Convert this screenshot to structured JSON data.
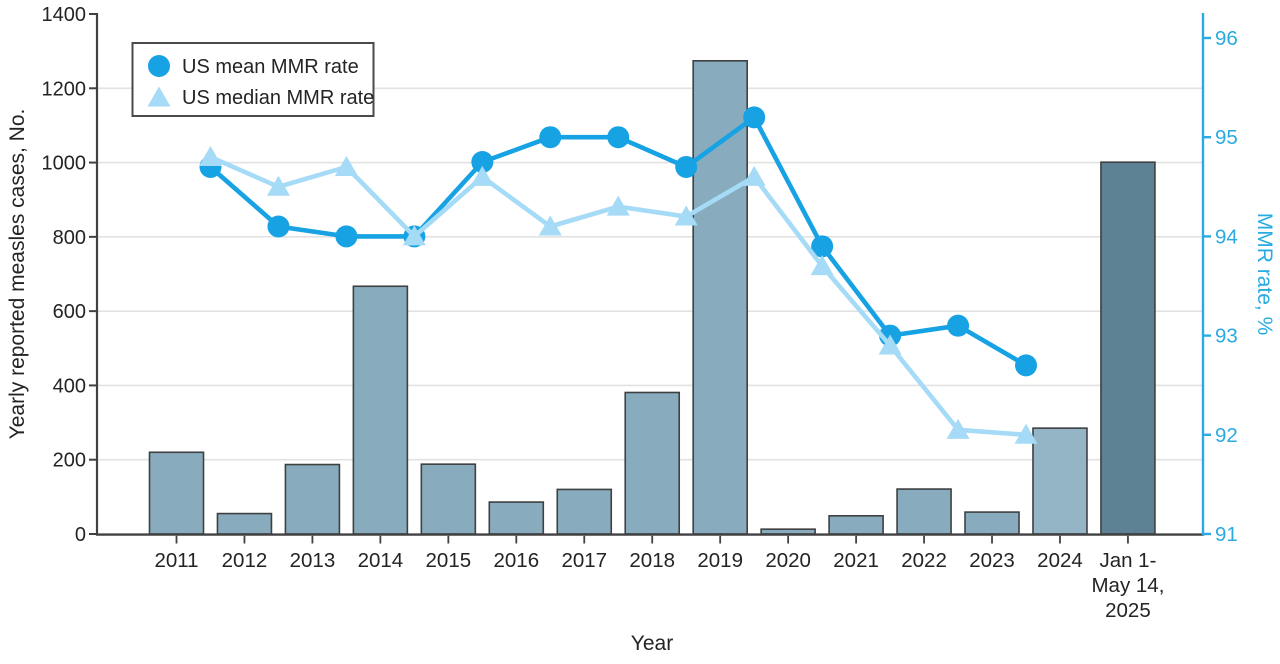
{
  "chart_data": {
    "type": "combo_bar_line",
    "title": "",
    "xlabel": "Year",
    "ylabel_left": "Yearly reported measles cases, No.",
    "ylabel_right": "MMR rate, %",
    "category_labels": [
      [
        "2011"
      ],
      [
        "2012"
      ],
      [
        "2013"
      ],
      [
        "2014"
      ],
      [
        "2015"
      ],
      [
        "2016"
      ],
      [
        "2017"
      ],
      [
        "2018"
      ],
      [
        "2019"
      ],
      [
        "2020"
      ],
      [
        "2021"
      ],
      [
        "2022"
      ],
      [
        "2023"
      ],
      [
        "2024"
      ],
      [
        "Jan 1-",
        "May 14,",
        "2025"
      ]
    ],
    "bars": {
      "values": [
        220,
        55,
        187,
        667,
        188,
        86,
        120,
        381,
        1274,
        13,
        49,
        121,
        59,
        285,
        1001
      ]
    },
    "series": [
      {
        "name": "US mean MMR rate",
        "marker": "circle",
        "values": [
          94.7,
          94.1,
          94.0,
          94.0,
          94.75,
          95.0,
          95.0,
          94.7,
          95.2,
          93.9,
          93.0,
          93.1,
          92.7
        ]
      },
      {
        "name": "US median MMR rate",
        "marker": "triangle",
        "values": [
          94.8,
          94.5,
          94.7,
          94.0,
          94.6,
          94.1,
          94.3,
          94.2,
          94.6,
          93.7,
          92.9,
          92.05,
          92.0
        ]
      }
    ],
    "left_axis": {
      "min": 0,
      "max": 1400,
      "tick_labels": [
        "0",
        "200",
        "400",
        "600",
        "800",
        "1000",
        "1200",
        "1400"
      ]
    },
    "right_axis": {
      "min": 91,
      "max": 96,
      "tick_labels": [
        "91",
        "92",
        "93",
        "94",
        "95",
        "96"
      ]
    },
    "legend": {
      "position": "top-left",
      "items": [
        {
          "label": "US mean MMR rate",
          "marker": "circle"
        },
        {
          "label": "US median MMR rate",
          "marker": "triangle"
        }
      ]
    },
    "grid": "horizontal"
  },
  "colors": {
    "bar_fill": "#88ACBD",
    "bar_fill_2024": "#93B5C6",
    "bar_fill_2025": "#5D8293",
    "bar_stroke": "#3E4042",
    "mean_line": "#17A2E4",
    "median_line": "#A5DBF6",
    "right_axis": "#29ABE2",
    "grid": "#E2E2E2",
    "axis": "#414042",
    "text": "#262324",
    "legend_border": "#4A4A4C",
    "background": "#FFFFFF"
  }
}
